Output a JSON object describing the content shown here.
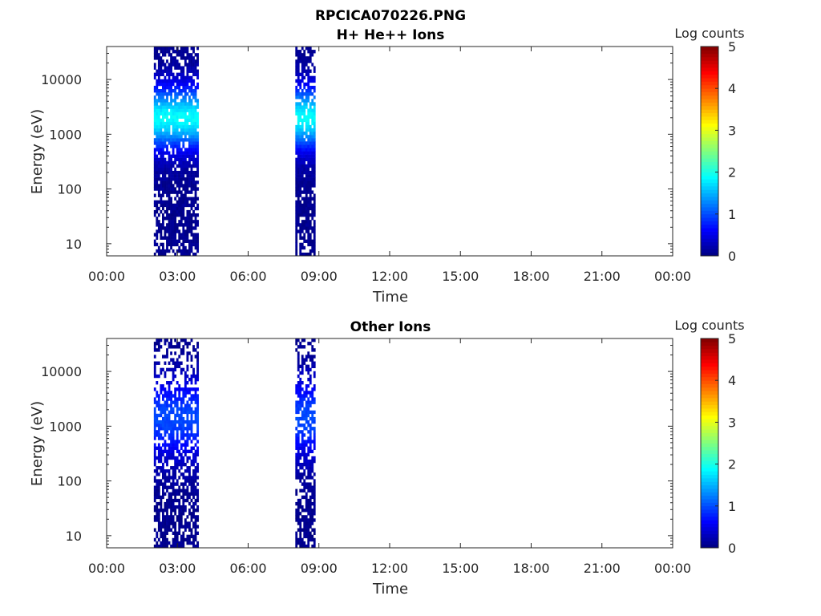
{
  "figure": {
    "title": "RPCICA070226.PNG"
  },
  "chart_data": [
    {
      "type": "heatmap",
      "title": "H+ He++ Ions",
      "xlabel": "Time",
      "ylabel": "Energy (eV)",
      "x_ticks": [
        "00:00",
        "03:00",
        "06:00",
        "09:00",
        "12:00",
        "15:00",
        "18:00",
        "21:00",
        "00:00"
      ],
      "xlim_hours": [
        0,
        24
      ],
      "y_scale": "log",
      "y_ticks": [
        "10",
        "100",
        "1000",
        "10000"
      ],
      "ylim": [
        6,
        40000
      ],
      "grid": false,
      "colorbar": {
        "label": "Log counts",
        "ticks": [
          "0",
          "1",
          "2",
          "3",
          "4",
          "5"
        ],
        "range": [
          0,
          5
        ],
        "colormap": "jet"
      },
      "data_intervals_hours": [
        [
          2.0,
          3.9
        ],
        [
          8.0,
          8.85
        ]
      ],
      "peak_energy_eV": [
        1000,
        4000
      ],
      "peak_log_counts": 1.8
    },
    {
      "type": "heatmap",
      "title": "Other Ions",
      "xlabel": "Time",
      "ylabel": "Energy (eV)",
      "x_ticks": [
        "00:00",
        "03:00",
        "06:00",
        "09:00",
        "12:00",
        "15:00",
        "18:00",
        "21:00",
        "00:00"
      ],
      "xlim_hours": [
        0,
        24
      ],
      "y_scale": "log",
      "y_ticks": [
        "10",
        "100",
        "1000",
        "10000"
      ],
      "ylim": [
        6,
        40000
      ],
      "grid": false,
      "colorbar": {
        "label": "Log counts",
        "ticks": [
          "0",
          "1",
          "2",
          "3",
          "4",
          "5"
        ],
        "range": [
          0,
          5
        ],
        "colormap": "jet"
      },
      "data_intervals_hours": [
        [
          2.0,
          3.9
        ],
        [
          8.0,
          8.85
        ]
      ],
      "peak_energy_eV": [
        500,
        4000
      ],
      "peak_log_counts": 0.9
    }
  ]
}
